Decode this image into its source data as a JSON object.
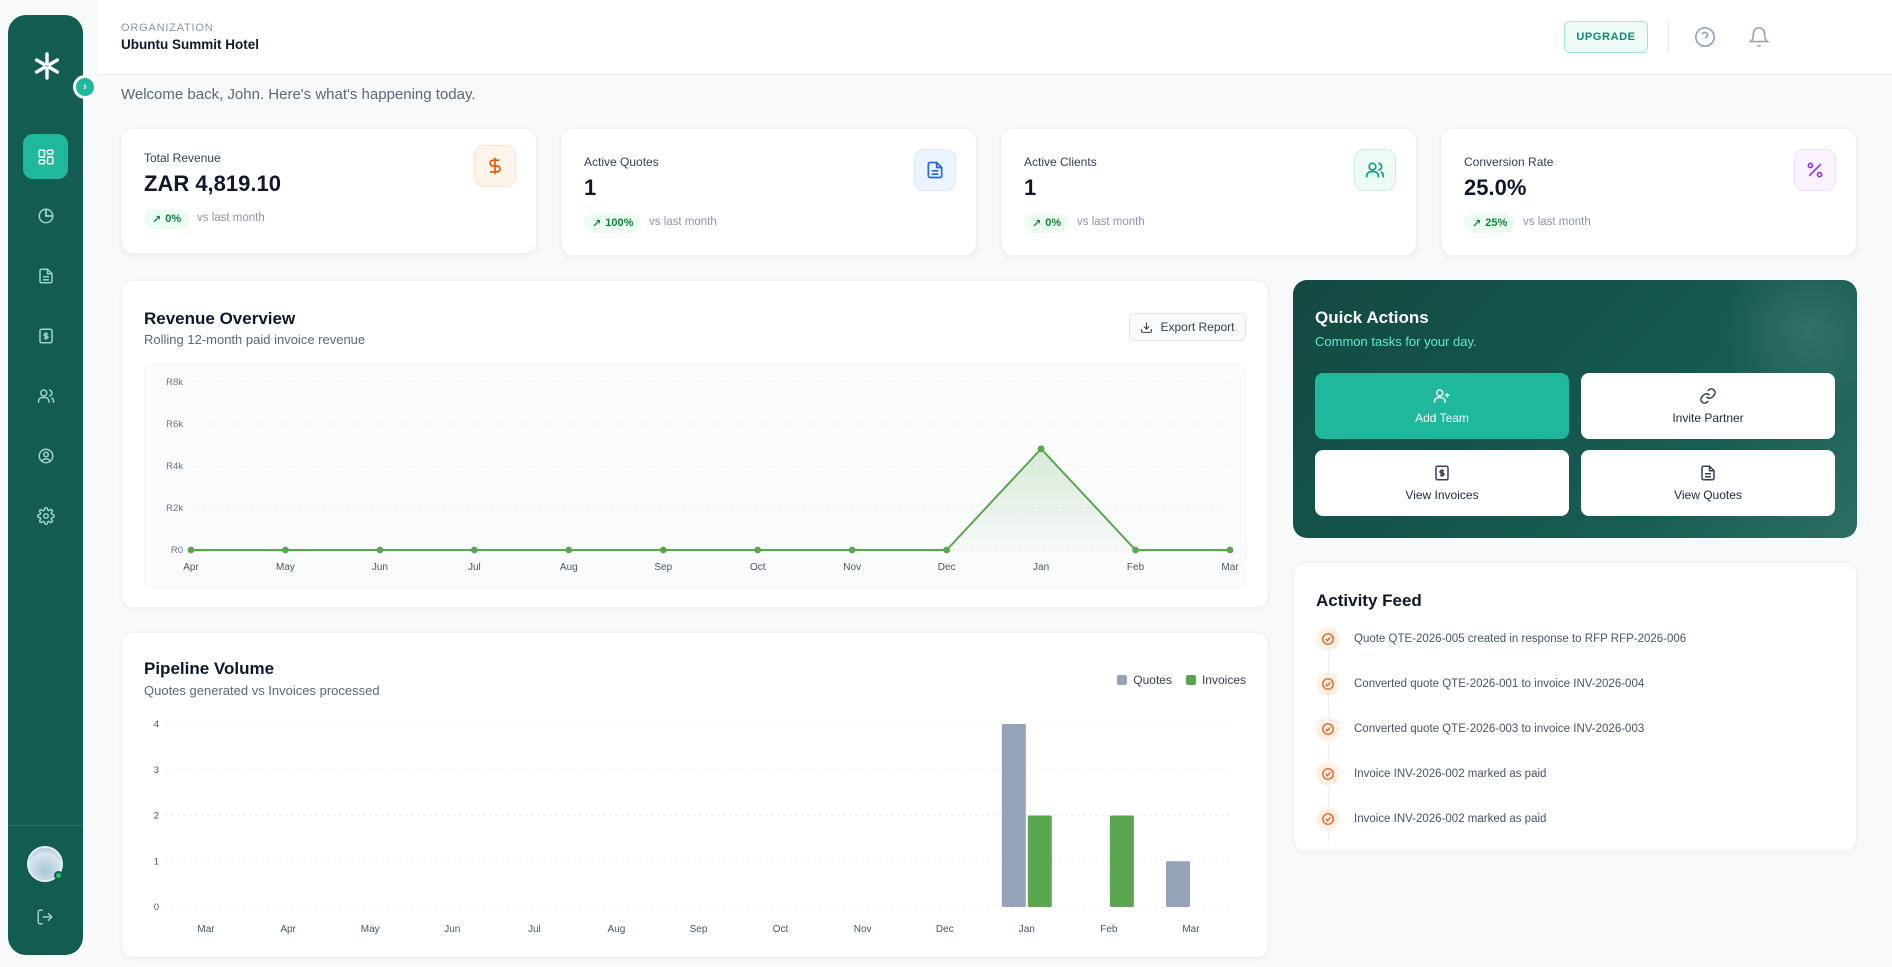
{
  "header": {
    "org_label": "ORGANIZATION",
    "org_name": "Ubuntu Summit Hotel",
    "upgrade_label": "UPGRADE"
  },
  "welcome": "Welcome back, John. Here's what's happening today.",
  "stats": [
    {
      "label": "Total Revenue",
      "value": "ZAR 4,819.10",
      "trend": "0%",
      "vs": "vs last month",
      "icon": "dollar-icon",
      "color": "#ea580c"
    },
    {
      "label": "Active Quotes",
      "value": "1",
      "trend": "100%",
      "vs": "vs last month",
      "icon": "document-icon",
      "color": "#2563eb"
    },
    {
      "label": "Active Clients",
      "value": "1",
      "trend": "0%",
      "vs": "vs last month",
      "icon": "users-icon",
      "color": "#0f9d7a"
    },
    {
      "label": "Conversion Rate",
      "value": "25.0%",
      "trend": "25%",
      "vs": "vs last month",
      "icon": "percent-icon",
      "color": "#9333ea"
    }
  ],
  "revenue": {
    "title": "Revenue Overview",
    "subtitle": "Rolling 12-month paid invoice revenue",
    "export_label": "Export Report"
  },
  "pipeline": {
    "title": "Pipeline Volume",
    "subtitle": "Quotes generated vs Invoices processed"
  },
  "chart_data": [
    {
      "type": "area",
      "categories": [
        "Apr",
        "May",
        "Jun",
        "Jul",
        "Aug",
        "Sep",
        "Oct",
        "Nov",
        "Dec",
        "Jan",
        "Feb",
        "Mar"
      ],
      "series": [
        {
          "values": [
            0,
            0,
            0,
            0,
            0,
            0,
            0,
            0,
            0,
            4819.1,
            0,
            0
          ]
        }
      ],
      "yticks": [
        "R0",
        "R2k",
        "R4k",
        "R6k",
        "R8k"
      ],
      "ylim": [
        0,
        8000
      ],
      "color": "#5aa64f",
      "grid": true
    },
    {
      "type": "bar",
      "categories": [
        "Mar",
        "Apr",
        "May",
        "Jun",
        "Jul",
        "Aug",
        "Sep",
        "Oct",
        "Nov",
        "Dec",
        "Jan",
        "Feb",
        "Mar"
      ],
      "series": [
        {
          "name": "Quotes",
          "values": [
            0,
            0,
            0,
            0,
            0,
            0,
            0,
            0,
            0,
            0,
            4,
            0,
            1
          ],
          "color": "#94a3b8"
        },
        {
          "name": "Invoices",
          "values": [
            0,
            0,
            0,
            0,
            0,
            0,
            0,
            0,
            0,
            0,
            2,
            2,
            0
          ],
          "color": "#5aa64f"
        }
      ],
      "yticks": [
        "0",
        "1",
        "2",
        "3",
        "4"
      ],
      "ylim": [
        0,
        4
      ],
      "grid": true,
      "legend": "top-right"
    }
  ],
  "quick": {
    "title": "Quick Actions",
    "subtitle": "Common tasks for your day.",
    "actions": [
      {
        "label": "Add Team",
        "icon": "user-plus-icon"
      },
      {
        "label": "Invite Partner",
        "icon": "link-icon"
      },
      {
        "label": "View Invoices",
        "icon": "invoice-icon"
      },
      {
        "label": "View Quotes",
        "icon": "document-icon"
      }
    ]
  },
  "feed": {
    "title": "Activity Feed",
    "items": [
      "Quote QTE-2026-005 created in response to RFP RFP-2026-006",
      "Converted quote QTE-2026-001 to invoice INV-2026-004",
      "Converted quote QTE-2026-003 to invoice INV-2026-003",
      "Invoice INV-2026-002 marked as paid",
      "Invoice INV-2026-002 marked as paid"
    ]
  },
  "sidebar": {
    "items": [
      "dashboard-icon",
      "analytics-icon",
      "quotes-icon",
      "invoices-icon",
      "clients-icon",
      "profile-icon",
      "settings-icon"
    ]
  }
}
